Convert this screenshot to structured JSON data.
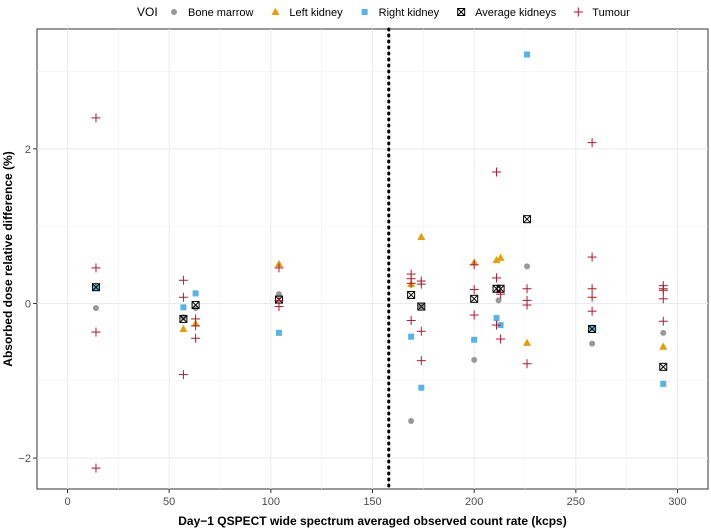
{
  "chart_data": {
    "type": "scatter",
    "xlabel": "Day−1 QSPECT wide spectrum averaged observed count rate (kcps)",
    "ylabel": "Absorbed dose relative difference (%)",
    "xlim": [
      -15,
      315
    ],
    "ylim": [
      -2.4,
      3.55
    ],
    "x_ticks": [
      0,
      50,
      100,
      150,
      200,
      250,
      300
    ],
    "x_tick_labels": [
      "0",
      "50",
      "100",
      "150",
      "200",
      "250",
      "300"
    ],
    "y_ticks": [
      -2,
      0,
      2
    ],
    "y_tick_labels": [
      "−2",
      "0",
      "2"
    ],
    "grid": true,
    "vline": {
      "x": 158,
      "style": "dotted"
    },
    "legend": {
      "title": "VOI",
      "position": "top",
      "entries": [
        "Bone marrow",
        "Left kidney",
        "Right kidney",
        "Average kidneys",
        "Tumour"
      ]
    },
    "colors": {
      "Bone marrow": "#999999",
      "Left kidney": "#E69F00",
      "Right kidney": "#56B4E9",
      "Average kidneys": "#000000",
      "Tumour": "#B2182B"
    },
    "series": [
      {
        "name": "Bone marrow",
        "shape": "circle",
        "points": [
          [
            14,
            -0.06
          ],
          [
            57,
            -0.18
          ],
          [
            63,
            -0.06
          ],
          [
            104,
            0.12
          ],
          [
            169,
            -1.52
          ],
          [
            174,
            -0.04
          ],
          [
            200,
            -0.73
          ],
          [
            212,
            0.04
          ],
          [
            226,
            0.48
          ],
          [
            258,
            -0.52
          ],
          [
            293,
            -0.38
          ]
        ]
      },
      {
        "name": "Left kidney",
        "shape": "triangle",
        "points": [
          [
            14,
            0.22
          ],
          [
            57,
            -0.33
          ],
          [
            63,
            -0.26
          ],
          [
            104,
            0.51
          ],
          [
            169,
            0.25
          ],
          [
            174,
            0.86
          ],
          [
            200,
            0.53
          ],
          [
            211,
            0.56
          ],
          [
            213,
            0.59
          ],
          [
            226,
            -0.51
          ],
          [
            258,
            -0.32
          ],
          [
            293,
            -0.56
          ]
        ]
      },
      {
        "name": "Right kidney",
        "shape": "square",
        "points": [
          [
            14,
            0.2
          ],
          [
            57,
            -0.05
          ],
          [
            63,
            0.13
          ],
          [
            104,
            -0.38
          ],
          [
            169,
            -0.43
          ],
          [
            174,
            -1.09
          ],
          [
            200,
            -0.47
          ],
          [
            211,
            -0.19
          ],
          [
            213,
            -0.28
          ],
          [
            226,
            3.22
          ],
          [
            258,
            -0.32
          ],
          [
            293,
            -1.04
          ]
        ]
      },
      {
        "name": "Average kidneys",
        "shape": "boxcross",
        "points": [
          [
            14,
            0.21
          ],
          [
            57,
            -0.2
          ],
          [
            63,
            -0.02
          ],
          [
            104,
            0.05
          ],
          [
            169,
            0.11
          ],
          [
            174,
            -0.04
          ],
          [
            200,
            0.06
          ],
          [
            211,
            0.19
          ],
          [
            213,
            0.19
          ],
          [
            226,
            1.09
          ],
          [
            258,
            -0.33
          ],
          [
            293,
            -0.82
          ]
        ]
      },
      {
        "name": "Tumour",
        "shape": "plus",
        "points": [
          [
            14,
            2.4
          ],
          [
            14,
            0.46
          ],
          [
            14,
            -0.37
          ],
          [
            14,
            -2.13
          ],
          [
            57,
            0.3
          ],
          [
            57,
            0.08
          ],
          [
            57,
            -0.92
          ],
          [
            63,
            -0.2
          ],
          [
            63,
            -0.29
          ],
          [
            63,
            -0.45
          ],
          [
            104,
            0.46
          ],
          [
            104,
            0.04
          ],
          [
            104,
            -0.04
          ],
          [
            169,
            0.38
          ],
          [
            169,
            0.32
          ],
          [
            169,
            0.26
          ],
          [
            169,
            -0.22
          ],
          [
            174,
            0.29
          ],
          [
            174,
            0.25
          ],
          [
            174,
            -0.36
          ],
          [
            174,
            -0.74
          ],
          [
            200,
            0.5
          ],
          [
            200,
            0.18
          ],
          [
            200,
            -0.15
          ],
          [
            211,
            1.7
          ],
          [
            211,
            0.33
          ],
          [
            211,
            -0.28
          ],
          [
            213,
            0.12
          ],
          [
            213,
            -0.46
          ],
          [
            226,
            0.19
          ],
          [
            226,
            0.04
          ],
          [
            226,
            -0.02
          ],
          [
            226,
            -0.78
          ],
          [
            258,
            2.08
          ],
          [
            258,
            0.6
          ],
          [
            258,
            0.19
          ],
          [
            258,
            0.08
          ],
          [
            258,
            -0.1
          ],
          [
            293,
            0.23
          ],
          [
            293,
            0.19
          ],
          [
            293,
            0.17
          ],
          [
            293,
            0.06
          ],
          [
            293,
            -0.23
          ]
        ]
      }
    ]
  }
}
